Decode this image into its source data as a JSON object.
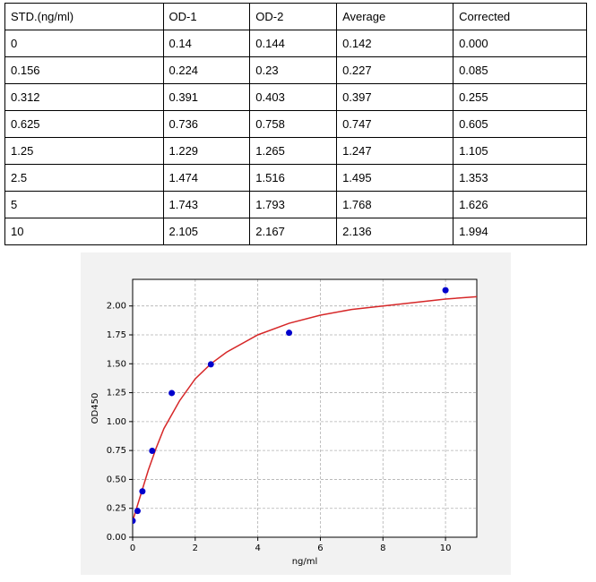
{
  "table": {
    "header": [
      "STD.(ng/ml)",
      "OD-1",
      "OD-2",
      "Average",
      "Corrected"
    ],
    "rows": [
      [
        "0",
        "0.14",
        "0.144",
        "0.142",
        "0.000"
      ],
      [
        "0.156",
        "0.224",
        "0.23",
        "0.227",
        "0.085"
      ],
      [
        "0.312",
        "0.391",
        "0.403",
        "0.397",
        "0.255"
      ],
      [
        "0.625",
        "0.736",
        "0.758",
        "0.747",
        "0.605"
      ],
      [
        "1.25",
        "1.229",
        "1.265",
        "1.247",
        "1.105"
      ],
      [
        "2.5",
        "1.474",
        "1.516",
        "1.495",
        "1.353"
      ],
      [
        "5",
        "1.743",
        "1.793",
        "1.768",
        "1.626"
      ],
      [
        "10",
        "2.105",
        "2.167",
        "2.136",
        "1.994"
      ]
    ]
  },
  "chart_data": {
    "type": "scatter",
    "xlabel": "ng/ml",
    "ylabel": "OD450",
    "xlim": [
      0,
      11
    ],
    "xticks": [
      0,
      2,
      4,
      6,
      8,
      10
    ],
    "ylim": [
      0,
      2.23
    ],
    "yticks": [
      {
        "value": 0,
        "label": "0.00"
      },
      {
        "value": 0.25,
        "label": "0.25"
      },
      {
        "value": 0.5,
        "label": "0.50"
      },
      {
        "value": 0.75,
        "label": "0.75"
      },
      {
        "value": 1,
        "label": "1.00"
      },
      {
        "value": 1.25,
        "label": "1.25"
      },
      {
        "value": 1.5,
        "label": "1.50"
      },
      {
        "value": 1.75,
        "label": "1.75"
      },
      {
        "value": 2,
        "label": "2.00"
      }
    ],
    "grid": true,
    "series": [
      {
        "type": "scatter",
        "color": "#0000cc",
        "x": [
          0,
          0.156,
          0.312,
          0.625,
          1.25,
          2.5,
          5,
          10
        ],
        "values": [
          0.142,
          0.227,
          0.397,
          0.747,
          1.247,
          1.495,
          1.768,
          2.136
        ]
      },
      {
        "type": "line",
        "color": "#d62728",
        "x": [
          0,
          0.25,
          0.5,
          0.75,
          1,
          1.5,
          2,
          2.5,
          3,
          4,
          5,
          6,
          7,
          8,
          9,
          10,
          11
        ],
        "values": [
          0.14,
          0.36,
          0.58,
          0.77,
          0.94,
          1.18,
          1.37,
          1.5,
          1.6,
          1.75,
          1.85,
          1.92,
          1.97,
          2.0,
          2.03,
          2.06,
          2.08
        ]
      }
    ]
  }
}
